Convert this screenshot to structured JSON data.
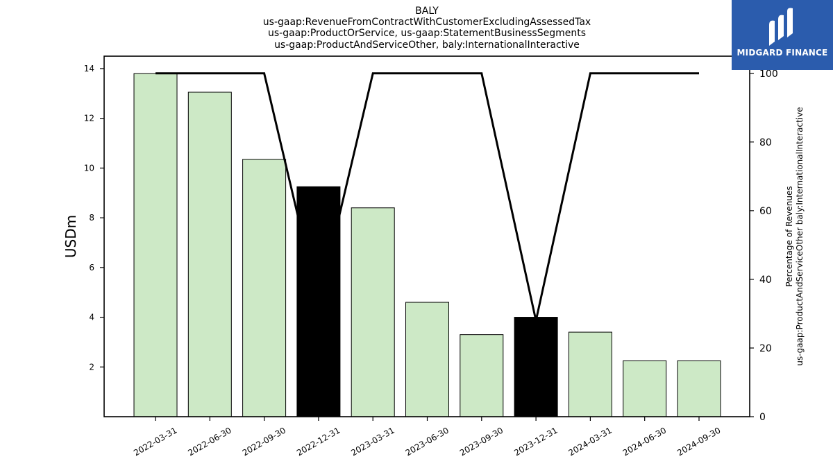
{
  "chart_data": {
    "type": "bar",
    "title_lines": [
      "BALY",
      "us-gaap:RevenueFromContractWithCustomerExcludingAssessedTax",
      "us-gaap:ProductOrService, us-gaap:StatementBusinessSegments",
      "us-gaap:ProductAndServiceOther, baly:InternationalInteractive"
    ],
    "categories": [
      "2022-03-31",
      "2022-06-30",
      "2022-09-30",
      "2022-12-31",
      "2023-03-31",
      "2023-06-30",
      "2023-09-30",
      "2023-12-31",
      "2024-03-31",
      "2024-06-30",
      "2024-09-30"
    ],
    "series": [
      {
        "type": "bar",
        "values": [
          13.8,
          13.05,
          10.35,
          9.25,
          8.4,
          4.6,
          3.3,
          4.0,
          3.4,
          2.25,
          2.25
        ],
        "highlight": [
          false,
          false,
          false,
          true,
          false,
          false,
          false,
          true,
          false,
          false,
          false
        ],
        "color": "#cde9c6",
        "highlight_color": "#000000",
        "axis": "left"
      },
      {
        "type": "line",
        "values": [
          100,
          100,
          100,
          33,
          100,
          100,
          100,
          28,
          100,
          100,
          100
        ],
        "color": "#000000",
        "axis": "right"
      }
    ],
    "ylabel": "USDm",
    "ylim": [
      0,
      14.5
    ],
    "yticks": [
      2,
      4,
      6,
      8,
      10,
      12,
      14
    ],
    "y2label_lines": [
      "Percentage of Revenues",
      "us-gaap:ProductAndServiceOther baly:InternationalInteractive"
    ],
    "y2lim": [
      0,
      105
    ],
    "y2ticks": [
      0,
      20,
      40,
      60,
      80,
      100
    ]
  },
  "logo": {
    "text": "MIDGARD FINANCE",
    "background": "#2b5cad"
  }
}
